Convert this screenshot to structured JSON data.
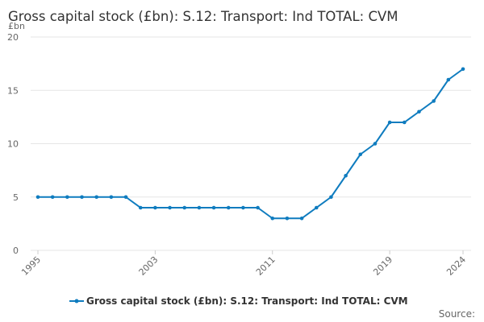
{
  "chart_data": {
    "type": "line",
    "title": "Gross capital stock (£bn): S.12: Transport: Ind TOTAL: CVM",
    "ylabel": "£bn",
    "xlabel": "",
    "x": [
      1995,
      1996,
      1997,
      1998,
      1999,
      2000,
      2001,
      2002,
      2003,
      2004,
      2005,
      2006,
      2007,
      2008,
      2009,
      2010,
      2011,
      2012,
      2013,
      2014,
      2015,
      2016,
      2017,
      2018,
      2019,
      2020,
      2021,
      2022,
      2023,
      2024
    ],
    "x_tick_labels": [
      "1995",
      "2003",
      "2011",
      "2019",
      "2024"
    ],
    "y_tick_labels": [
      "0",
      "5",
      "10",
      "15",
      "20"
    ],
    "ylim": [
      0,
      20
    ],
    "xlim": [
      1995,
      2024
    ],
    "grid": true,
    "legend_position": "bottom",
    "series": [
      {
        "name": "Gross capital stock (£bn): S.12: Transport: Ind TOTAL: CVM",
        "color": "#0f7cbf",
        "values": [
          5,
          5,
          5,
          5,
          5,
          5,
          5,
          4,
          4,
          4,
          4,
          4,
          4,
          4,
          4,
          4,
          3,
          3,
          3,
          4,
          5,
          7,
          9,
          10,
          12,
          12,
          13,
          14,
          16,
          17
        ]
      }
    ],
    "source_label": "Source:"
  }
}
